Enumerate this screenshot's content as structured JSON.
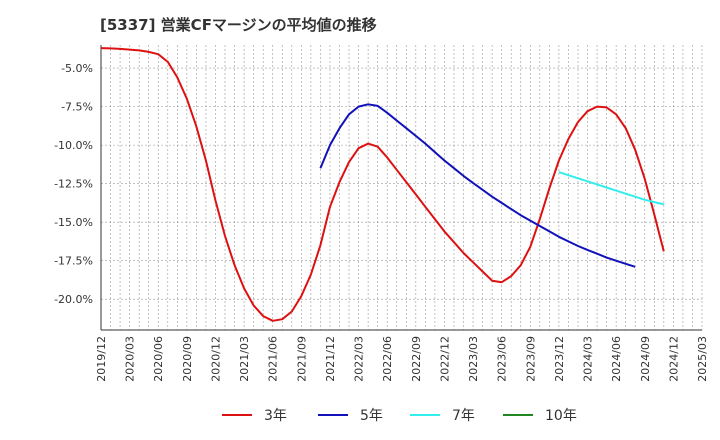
{
  "chart_data": {
    "type": "line",
    "title": "[5337]  営業CFマージンの平均値の推移",
    "xlabel": "",
    "ylabel": "",
    "ylim": [
      -22,
      -3.5
    ],
    "y_ticks": [
      -5.0,
      -7.5,
      -10.0,
      -12.5,
      -15.0,
      -17.5,
      -20.0
    ],
    "y_tick_labels": [
      "-5.0%",
      "-7.5%",
      "-10.0%",
      "-12.5%",
      "-15.0%",
      "-17.5%",
      "-20.0%"
    ],
    "x_range": [
      "2019/12",
      "2025/03"
    ],
    "x_tick_labels": [
      "2019/12",
      "2020/03",
      "2020/06",
      "2020/09",
      "2020/12",
      "2021/03",
      "2021/06",
      "2021/09",
      "2021/12",
      "2022/03",
      "2022/06",
      "2022/09",
      "2022/12",
      "2023/03",
      "2023/06",
      "2023/09",
      "2023/12",
      "2024/03",
      "2024/06",
      "2024/09",
      "2024/12",
      "2025/03"
    ],
    "grid": true,
    "legend_position": "bottom",
    "series": [
      {
        "name": "3年",
        "color": "#dd1111",
        "points": [
          [
            "2019/12",
            -3.7
          ],
          [
            "2020/01",
            -3.72
          ],
          [
            "2020/02",
            -3.75
          ],
          [
            "2020/03",
            -3.8
          ],
          [
            "2020/04",
            -3.85
          ],
          [
            "2020/05",
            -3.95
          ],
          [
            "2020/06",
            -4.1
          ],
          [
            "2020/07",
            -4.6
          ],
          [
            "2020/08",
            -5.6
          ],
          [
            "2020/09",
            -7.0
          ],
          [
            "2020/10",
            -8.8
          ],
          [
            "2020/11",
            -11.0
          ],
          [
            "2020/12",
            -13.6
          ],
          [
            "2021/01",
            -15.9
          ],
          [
            "2021/02",
            -17.8
          ],
          [
            "2021/03",
            -19.3
          ],
          [
            "2021/04",
            -20.4
          ],
          [
            "2021/05",
            -21.1
          ],
          [
            "2021/06",
            -21.4
          ],
          [
            "2021/07",
            -21.3
          ],
          [
            "2021/08",
            -20.8
          ],
          [
            "2021/09",
            -19.8
          ],
          [
            "2021/10",
            -18.4
          ],
          [
            "2021/11",
            -16.5
          ],
          [
            "2021/12",
            -14.0
          ],
          [
            "2022/01",
            -12.4
          ],
          [
            "2022/02",
            -11.1
          ],
          [
            "2022/03",
            -10.2
          ],
          [
            "2022/04",
            -9.9
          ],
          [
            "2022/05",
            -10.1
          ],
          [
            "2022/06",
            -10.8
          ],
          [
            "2022/07",
            -11.6
          ],
          [
            "2022/08",
            -12.4
          ],
          [
            "2022/09",
            -13.2
          ],
          [
            "2022/10",
            -14.0
          ],
          [
            "2022/11",
            -14.8
          ],
          [
            "2022/12",
            -15.6
          ],
          [
            "2023/01",
            -16.3
          ],
          [
            "2023/02",
            -17.0
          ],
          [
            "2023/03",
            -17.6
          ],
          [
            "2023/04",
            -18.2
          ],
          [
            "2023/05",
            -18.8
          ],
          [
            "2023/06",
            -18.9
          ],
          [
            "2023/07",
            -18.5
          ],
          [
            "2023/08",
            -17.8
          ],
          [
            "2023/09",
            -16.6
          ],
          [
            "2023/10",
            -14.8
          ],
          [
            "2023/11",
            -12.8
          ],
          [
            "2023/12",
            -11.0
          ],
          [
            "2024/01",
            -9.6
          ],
          [
            "2024/02",
            -8.5
          ],
          [
            "2024/03",
            -7.8
          ],
          [
            "2024/04",
            -7.5
          ],
          [
            "2024/05",
            -7.55
          ],
          [
            "2024/06",
            -8.0
          ],
          [
            "2024/07",
            -8.9
          ],
          [
            "2024/08",
            -10.3
          ],
          [
            "2024/09",
            -12.2
          ],
          [
            "2024/10",
            -14.5
          ],
          [
            "2024/11",
            -16.9
          ]
        ]
      },
      {
        "name": "5年",
        "color": "#1111bb",
        "points": [
          [
            "2021/11",
            -11.5
          ],
          [
            "2021/12",
            -10.0
          ],
          [
            "2022/01",
            -8.9
          ],
          [
            "2022/02",
            -8.0
          ],
          [
            "2022/03",
            -7.5
          ],
          [
            "2022/04",
            -7.35
          ],
          [
            "2022/05",
            -7.45
          ],
          [
            "2022/06",
            -7.9
          ],
          [
            "2022/07",
            -8.4
          ],
          [
            "2022/08",
            -8.9
          ],
          [
            "2022/09",
            -9.4
          ],
          [
            "2022/10",
            -9.9
          ],
          [
            "2022/11",
            -10.45
          ],
          [
            "2022/12",
            -11.0
          ],
          [
            "2023/01",
            -11.5
          ],
          [
            "2023/02",
            -12.0
          ],
          [
            "2023/03",
            -12.45
          ],
          [
            "2023/04",
            -12.9
          ],
          [
            "2023/05",
            -13.35
          ],
          [
            "2023/06",
            -13.75
          ],
          [
            "2023/07",
            -14.15
          ],
          [
            "2023/08",
            -14.55
          ],
          [
            "2023/09",
            -14.9
          ],
          [
            "2023/10",
            -15.25
          ],
          [
            "2023/11",
            -15.6
          ],
          [
            "2023/12",
            -15.95
          ],
          [
            "2024/01",
            -16.25
          ],
          [
            "2024/02",
            -16.55
          ],
          [
            "2024/03",
            -16.8
          ],
          [
            "2024/04",
            -17.05
          ],
          [
            "2024/05",
            -17.3
          ],
          [
            "2024/06",
            -17.5
          ],
          [
            "2024/07",
            -17.7
          ],
          [
            "2024/08",
            -17.9
          ]
        ]
      },
      {
        "name": "7年",
        "color": "#33eeee",
        "points": [
          [
            "2023/12",
            -11.75
          ],
          [
            "2024/01",
            -11.95
          ],
          [
            "2024/02",
            -12.15
          ],
          [
            "2024/03",
            -12.35
          ],
          [
            "2024/04",
            -12.55
          ],
          [
            "2024/05",
            -12.75
          ],
          [
            "2024/06",
            -12.95
          ],
          [
            "2024/07",
            -13.15
          ],
          [
            "2024/08",
            -13.35
          ],
          [
            "2024/09",
            -13.55
          ],
          [
            "2024/10",
            -13.7
          ],
          [
            "2024/11",
            -13.85
          ]
        ]
      },
      {
        "name": "10年",
        "color": "#228822",
        "points": []
      }
    ]
  }
}
